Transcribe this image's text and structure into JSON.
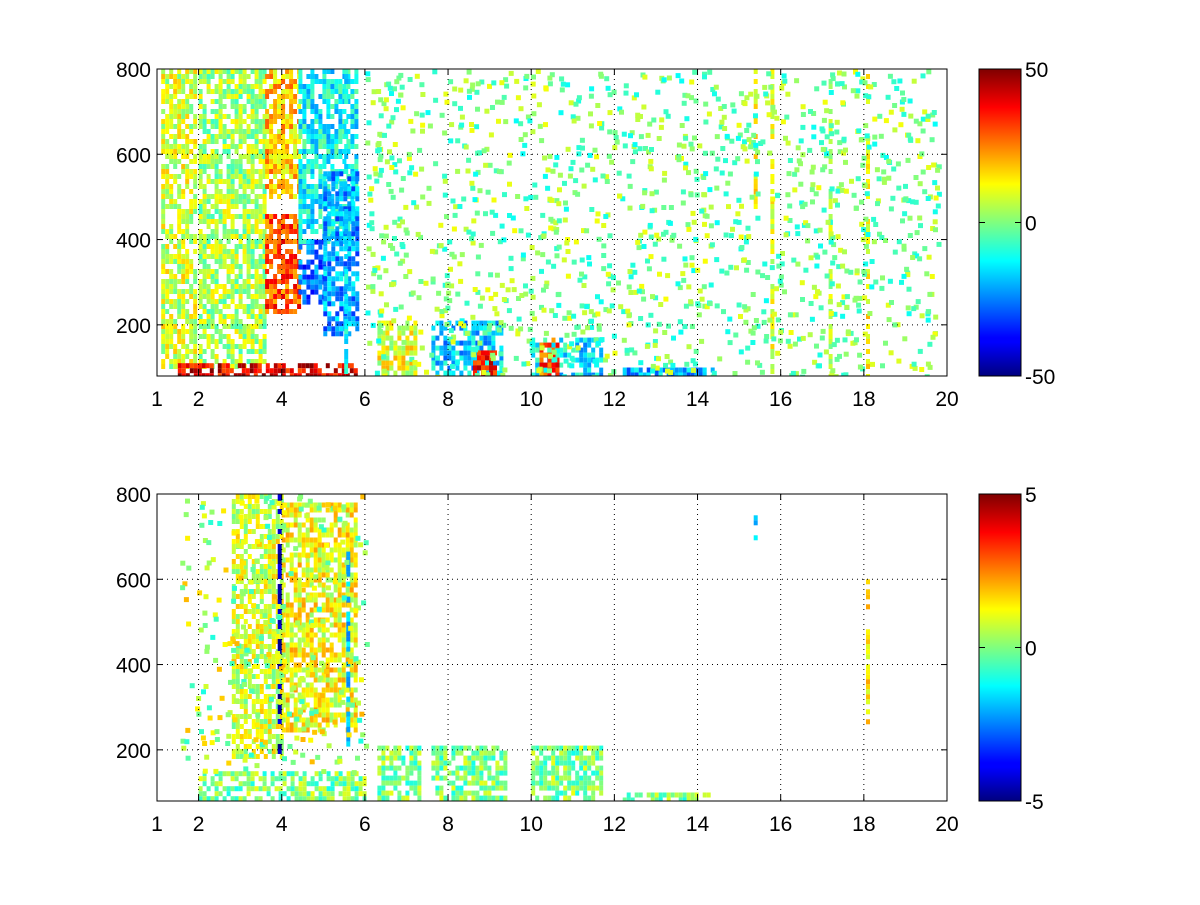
{
  "chart_data": [
    {
      "type": "heatmap",
      "title": "",
      "xlabel": "",
      "ylabel": "",
      "xlim": [
        1,
        20
      ],
      "ylim": [
        80,
        800
      ],
      "x_ticks": [
        1,
        2,
        4,
        6,
        8,
        10,
        12,
        14,
        16,
        18,
        20
      ],
      "y_ticks": [
        200,
        400,
        600,
        800
      ],
      "grid": true,
      "colormap": "jet",
      "colorbar": {
        "min": -50,
        "max": 50,
        "ticks": [
          50,
          0,
          -50
        ]
      },
      "regions": [
        {
          "x": [
            1.1,
            1.9
          ],
          "y": [
            100,
            800
          ],
          "value": 8
        },
        {
          "x": [
            2.0,
            3.6
          ],
          "y": [
            100,
            800
          ],
          "value": 4
        },
        {
          "x": [
            3.6,
            4.4
          ],
          "y": [
            500,
            800
          ],
          "value": 18
        },
        {
          "x": [
            3.6,
            4.4
          ],
          "y": [
            230,
            460
          ],
          "value": 30
        },
        {
          "x": [
            4.4,
            5.0
          ],
          "y": [
            250,
            400
          ],
          "value": -28
        },
        {
          "x": [
            4.4,
            5.8
          ],
          "y": [
            400,
            800
          ],
          "value": -12
        },
        {
          "x": [
            5.0,
            5.8
          ],
          "y": [
            180,
            560
          ],
          "value": -22
        },
        {
          "x": [
            1.5,
            5.8
          ],
          "y": [
            80,
            110
          ],
          "value": 40
        },
        {
          "x": [
            6.3,
            7.2
          ],
          "y": [
            80,
            210
          ],
          "value": 10
        },
        {
          "x": [
            7.6,
            9.3
          ],
          "y": [
            80,
            210
          ],
          "value": -18
        },
        {
          "x": [
            8.6,
            9.1
          ],
          "y": [
            80,
            140
          ],
          "value": 35
        },
        {
          "x": [
            10.0,
            11.7
          ],
          "y": [
            80,
            170
          ],
          "value": -15
        },
        {
          "x": [
            10.2,
            10.6
          ],
          "y": [
            80,
            170
          ],
          "value": 30
        },
        {
          "x": [
            12.2,
            14.4
          ],
          "y": [
            80,
            100
          ],
          "value": -20
        }
      ],
      "columns": [
        {
          "x": 5.55,
          "y": [
            80,
            800
          ],
          "value": -14
        },
        {
          "x": 15.4,
          "y": [
            460,
            800
          ],
          "value": 14
        },
        {
          "x": 15.8,
          "y": [
            80,
            800
          ],
          "value": 10
        },
        {
          "x": 18.1,
          "y": [
            80,
            800
          ],
          "value": 14
        },
        {
          "x": 17.2,
          "y": [
            80,
            800
          ],
          "value": 6
        }
      ],
      "scatter_range": {
        "x": [
          6.0,
          19.8
        ],
        "y": [
          80,
          800
        ],
        "values": [
          -12,
          12
        ]
      }
    },
    {
      "type": "heatmap",
      "title": "",
      "xlabel": "",
      "ylabel": "",
      "xlim": [
        1,
        20
      ],
      "ylim": [
        80,
        800
      ],
      "x_ticks": [
        1,
        2,
        4,
        6,
        8,
        10,
        12,
        14,
        16,
        18,
        20
      ],
      "y_ticks": [
        200,
        400,
        600,
        800
      ],
      "grid": true,
      "colormap": "jet",
      "colorbar": {
        "min": -5,
        "max": 5,
        "ticks": [
          5,
          0,
          -5
        ]
      },
      "regions": [
        {
          "x": [
            2.8,
            4.0
          ],
          "y": [
            180,
            800
          ],
          "value": 0.8
        },
        {
          "x": [
            4.0,
            5.8
          ],
          "y": [
            250,
            780
          ],
          "value": 1.2
        },
        {
          "x": [
            2.0,
            6.0
          ],
          "y": [
            80,
            150
          ],
          "value": 0
        },
        {
          "x": [
            6.3,
            7.3
          ],
          "y": [
            80,
            210
          ],
          "value": 0
        },
        {
          "x": [
            7.6,
            9.4
          ],
          "y": [
            80,
            210
          ],
          "value": 0
        },
        {
          "x": [
            10.0,
            11.7
          ],
          "y": [
            80,
            210
          ],
          "value": 0
        },
        {
          "x": [
            12.2,
            14.4
          ],
          "y": [
            80,
            100
          ],
          "value": 0
        }
      ],
      "columns": [
        {
          "x": 3.95,
          "y": [
            200,
            800
          ],
          "value": -4.5
        },
        {
          "x": 5.6,
          "y": [
            200,
            700
          ],
          "value": -2
        },
        {
          "x": 18.1,
          "y": [
            250,
            600
          ],
          "value": 1.5
        },
        {
          "x": 15.4,
          "y": [
            700,
            750
          ],
          "value": -1.5
        }
      ],
      "scatter_range": {
        "x": [
          1.5,
          6.0
        ],
        "y": [
          150,
          800
        ],
        "values": [
          -1,
          2
        ]
      }
    }
  ]
}
